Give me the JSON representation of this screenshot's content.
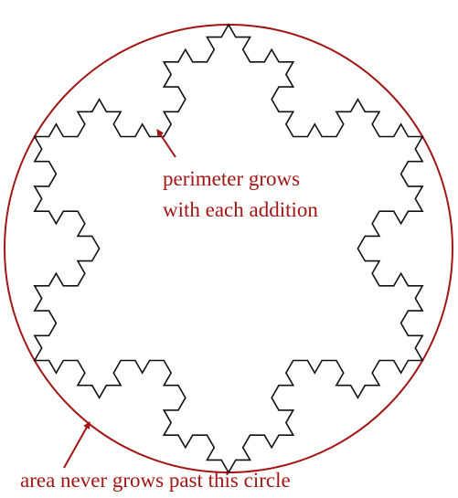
{
  "colors": {
    "annotation": "#a31515",
    "fractal": "#111111",
    "background": "#ffffff"
  },
  "annotations": {
    "perimeter_line1": "perimeter grows",
    "perimeter_line2": "with each addition",
    "area": "area never grows past this circle"
  },
  "shapes": {
    "fractal": "koch-snowflake",
    "fractal_iterations": 3,
    "boundary": "circle"
  }
}
